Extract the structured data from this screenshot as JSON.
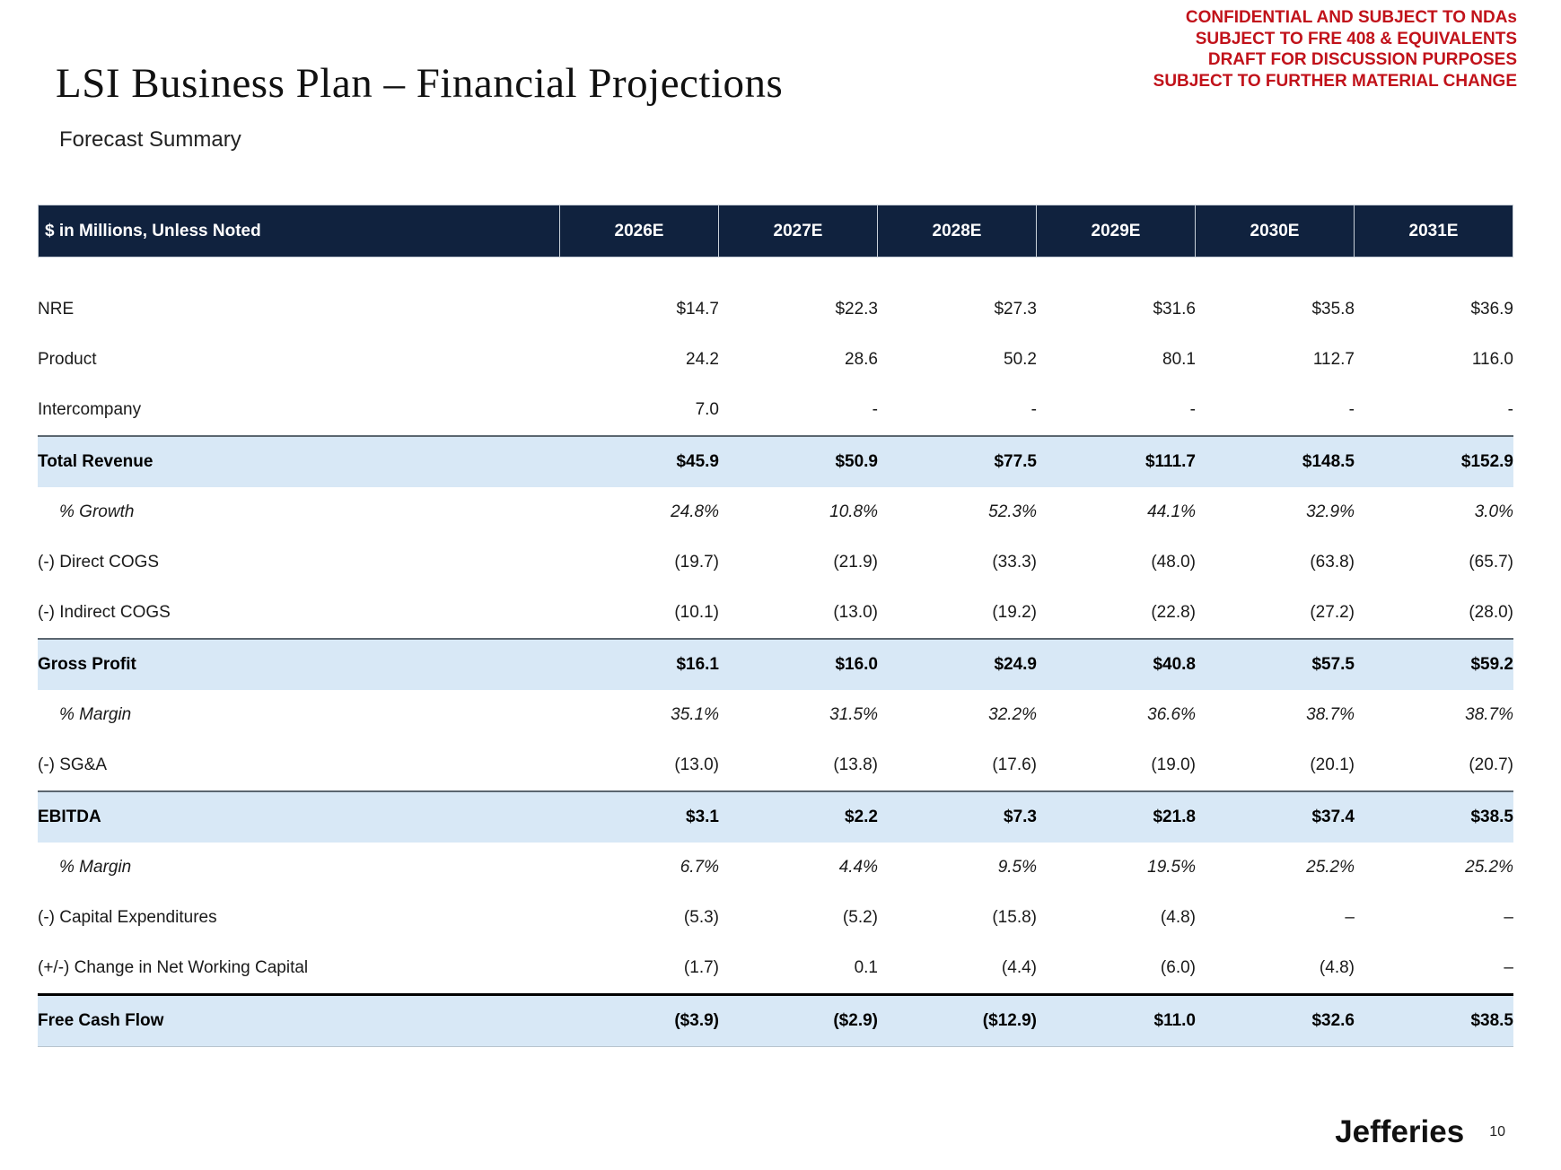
{
  "disclaimer": {
    "lines": [
      "CONFIDENTIAL AND SUBJECT TO NDAs",
      "SUBJECT TO FRE 408 & EQUIVALENTS",
      "DRAFT FOR DISCUSSION PURPOSES",
      "SUBJECT TO FURTHER MATERIAL CHANGE"
    ],
    "color": "#c1121a"
  },
  "header": {
    "title": "LSI Business Plan – Financial Projections",
    "subtitle": "Forecast Summary"
  },
  "table": {
    "unit_label": "$ in Millions, Unless Noted",
    "columns": [
      "2026E",
      "2027E",
      "2028E",
      "2029E",
      "2030E",
      "2031E"
    ],
    "rows": [
      {
        "label": "NRE",
        "values": [
          "$14.7",
          "$22.3",
          "$27.3",
          "$31.6",
          "$35.8",
          "$36.9"
        ],
        "bold": false,
        "italic": false,
        "highlight": false,
        "rule_top": null,
        "rule_bottom": false
      },
      {
        "label": "Product",
        "values": [
          "24.2",
          "28.6",
          "50.2",
          "80.1",
          "112.7",
          "116.0"
        ],
        "bold": false,
        "italic": false,
        "highlight": false,
        "rule_top": null,
        "rule_bottom": false
      },
      {
        "label": "Intercompany",
        "values": [
          "7.0",
          "-",
          "-",
          "-",
          "-",
          "-"
        ],
        "bold": false,
        "italic": false,
        "highlight": false,
        "rule_top": null,
        "rule_bottom": false
      },
      {
        "label": "Total Revenue",
        "values": [
          "$45.9",
          "$50.9",
          "$77.5",
          "$111.7",
          "$148.5",
          "$152.9"
        ],
        "bold": true,
        "italic": false,
        "highlight": true,
        "rule_top": "gray",
        "rule_bottom": false
      },
      {
        "label": "% Growth",
        "values": [
          "24.8%",
          "10.8%",
          "52.3%",
          "44.1%",
          "32.9%",
          "3.0%"
        ],
        "bold": false,
        "italic": true,
        "highlight": false,
        "rule_top": null,
        "rule_bottom": false
      },
      {
        "label": "(-) Direct COGS",
        "values": [
          "(19.7)",
          "(21.9)",
          "(33.3)",
          "(48.0)",
          "(63.8)",
          "(65.7)"
        ],
        "bold": false,
        "italic": false,
        "highlight": false,
        "rule_top": null,
        "rule_bottom": false
      },
      {
        "label": "(-) Indirect COGS",
        "values": [
          "(10.1)",
          "(13.0)",
          "(19.2)",
          "(22.8)",
          "(27.2)",
          "(28.0)"
        ],
        "bold": false,
        "italic": false,
        "highlight": false,
        "rule_top": null,
        "rule_bottom": false
      },
      {
        "label": "Gross Profit",
        "values": [
          "$16.1",
          "$16.0",
          "$24.9",
          "$40.8",
          "$57.5",
          "$59.2"
        ],
        "bold": true,
        "italic": false,
        "highlight": true,
        "rule_top": "gray",
        "rule_bottom": false
      },
      {
        "label": "% Margin",
        "values": [
          "35.1%",
          "31.5%",
          "32.2%",
          "36.6%",
          "38.7%",
          "38.7%"
        ],
        "bold": false,
        "italic": true,
        "highlight": false,
        "rule_top": null,
        "rule_bottom": false
      },
      {
        "label": "(-) SG&A",
        "values": [
          "(13.0)",
          "(13.8)",
          "(17.6)",
          "(19.0)",
          "(20.1)",
          "(20.7)"
        ],
        "bold": false,
        "italic": false,
        "highlight": false,
        "rule_top": null,
        "rule_bottom": false
      },
      {
        "label": "EBITDA",
        "values": [
          "$3.1",
          "$2.2",
          "$7.3",
          "$21.8",
          "$37.4",
          "$38.5"
        ],
        "bold": true,
        "italic": false,
        "highlight": true,
        "rule_top": "gray",
        "rule_bottom": false
      },
      {
        "label": "% Margin",
        "values": [
          "6.7%",
          "4.4%",
          "9.5%",
          "19.5%",
          "25.2%",
          "25.2%"
        ],
        "bold": false,
        "italic": true,
        "highlight": false,
        "rule_top": null,
        "rule_bottom": false
      },
      {
        "label": "(-) Capital Expenditures",
        "values": [
          "(5.3)",
          "(5.2)",
          "(15.8)",
          "(4.8)",
          "–",
          "–"
        ],
        "bold": false,
        "italic": false,
        "highlight": false,
        "rule_top": null,
        "rule_bottom": false
      },
      {
        "label": "(+/-) Change in Net Working Capital",
        "values": [
          "(1.7)",
          "0.1",
          "(4.4)",
          "(6.0)",
          "(4.8)",
          "–"
        ],
        "bold": false,
        "italic": false,
        "highlight": false,
        "rule_top": null,
        "rule_bottom": false
      },
      {
        "label": "Free Cash Flow",
        "values": [
          "($3.9)",
          "($2.9)",
          "($12.9)",
          "$11.0",
          "$32.6",
          "$38.5"
        ],
        "bold": true,
        "italic": false,
        "highlight": true,
        "rule_top": "black",
        "rule_bottom": true
      }
    ]
  },
  "footer": {
    "logo": "Jefferies",
    "page_number": "10"
  },
  "colors": {
    "header_navy": "#10223e",
    "highlight_blue": "#d8e8f6",
    "disclaimer_red": "#c1121a"
  }
}
